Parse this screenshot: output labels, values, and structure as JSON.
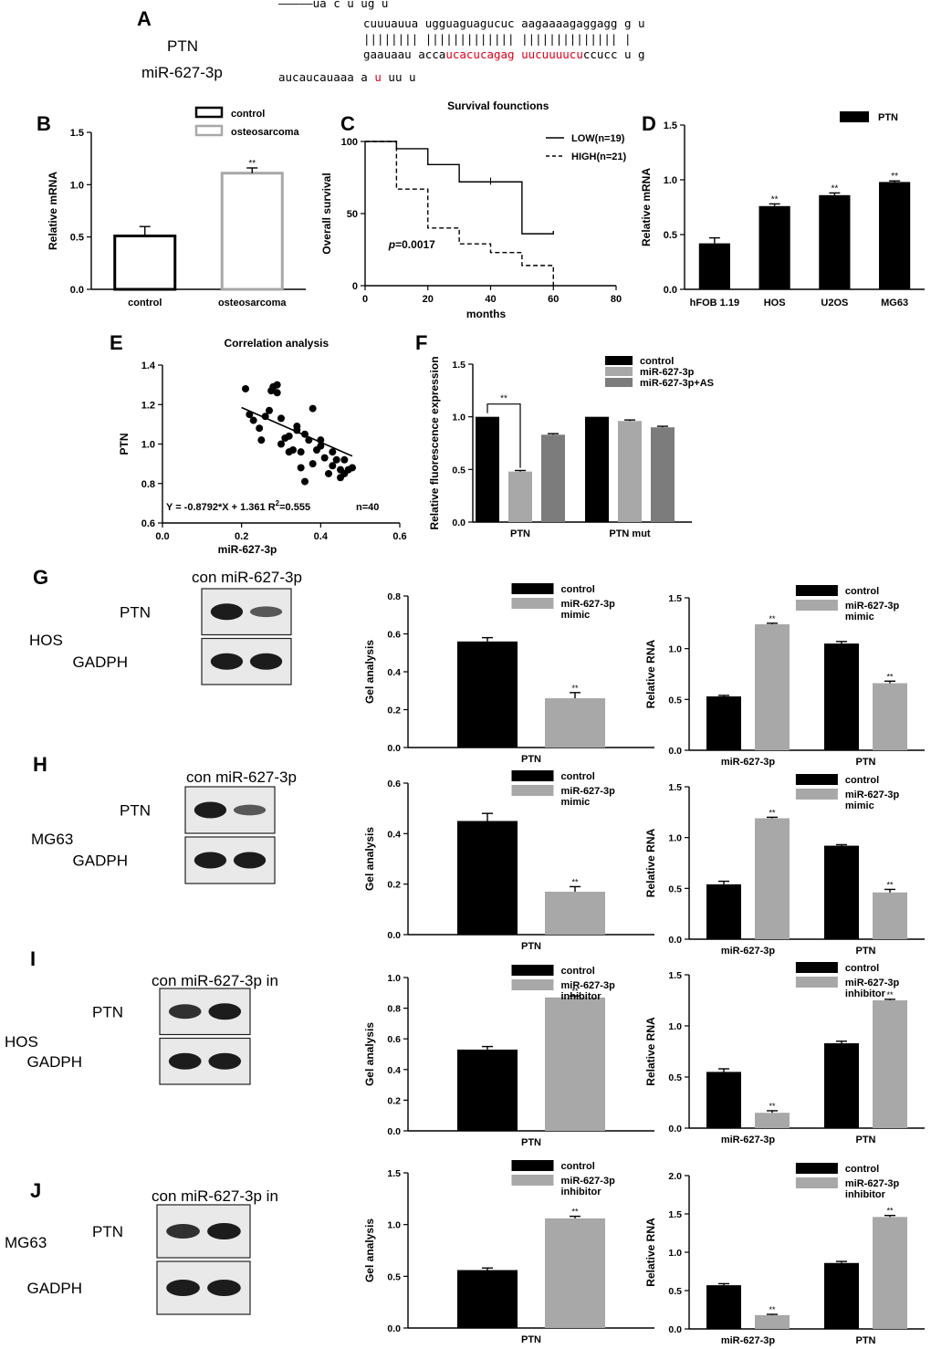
{
  "colors": {
    "black": "#000000",
    "light_gray": "#a8a8a8",
    "mid_gray": "#7c7c7c",
    "dark_gray": "#6a6a6a",
    "red": "#e0001a"
  },
  "panel_a": {
    "letter": "A",
    "gene_label": "PTN",
    "mirna_label": "miR-627-3p",
    "lines": [
      [
        {
          "t": "—————ua        c                u               ug u"
        }
      ],
      [
        {
          "t": "cuuuauua ugguaguagucuc aagaaaagaggagg  g u"
        }
      ],
      [
        {
          "t": "|||||||| ||||||||||||| |||||||||||||| |"
        }
      ],
      [
        {
          "t": "gaauaau acca"
        },
        {
          "t": "ucacucagag",
          "c": "red"
        },
        {
          "t": " "
        },
        {
          "t": "uucuuuucu",
          "c": "red"
        },
        {
          "t": "ccucc  u g"
        }
      ],
      [
        {
          "t": "aucaucauaaa      a                "
        },
        {
          "t": "u",
          "c": "red"
        },
        {
          "t": "               uu u"
        }
      ]
    ]
  },
  "western_blots": [
    {
      "letter": "G",
      "cell": "HOS",
      "header": "con miR-627-3p",
      "bands": [
        "PTN",
        "GADPH"
      ]
    },
    {
      "letter": "H",
      "cell": "MG63",
      "header": "con miR-627-3p",
      "bands": [
        "PTN",
        "GADPH"
      ]
    },
    {
      "letter": "I",
      "cell": "HOS",
      "header": "con miR-627-3p in",
      "bands": [
        "PTN",
        "GADPH"
      ]
    },
    {
      "letter": "J",
      "cell": "MG63",
      "header": "con miR-627-3p in",
      "bands": [
        "PTN",
        "GADPH"
      ]
    }
  ],
  "chart_data": [
    {
      "id": "B",
      "type": "bar",
      "letter": "B",
      "title": "",
      "ylabel": "Relative mRNA",
      "ylim": [
        0,
        1.5
      ],
      "yticks": [
        "0.0",
        "0.5",
        "1.0",
        "1.5"
      ],
      "categories": [
        "control",
        "osteosarcoma"
      ],
      "values": [
        0.51,
        1.11
      ],
      "errors": [
        0.09,
        0.05
      ],
      "sig": [
        "",
        "**"
      ],
      "style": "open",
      "colors": [
        "#000000",
        "#a8a8a8"
      ],
      "legend": [
        "control",
        "osteosarcoma"
      ],
      "legend_position": "top-right"
    },
    {
      "id": "C",
      "type": "line",
      "letter": "C",
      "title": "Survival founctions",
      "xlabel": "months",
      "ylabel": "Overall survival",
      "xlim": [
        0,
        80
      ],
      "ylim": [
        0,
        100
      ],
      "xticks": [
        "0",
        "20",
        "40",
        "60",
        "80"
      ],
      "yticks": [
        "0",
        "50",
        "100"
      ],
      "series": [
        {
          "name": "LOW(n=19)",
          "dash": false,
          "x": [
            0,
            10,
            10,
            20,
            20,
            30,
            30,
            40,
            40,
            50,
            50,
            60,
            60
          ],
          "y": [
            100,
            100,
            95,
            95,
            84,
            84,
            72,
            72,
            72,
            72,
            36,
            36,
            38
          ]
        },
        {
          "name": "HIGH(n=21)",
          "dash": true,
          "x": [
            0,
            10,
            10,
            20,
            20,
            30,
            30,
            40,
            40,
            50,
            50,
            60,
            60
          ],
          "y": [
            100,
            100,
            67,
            67,
            40,
            40,
            29,
            29,
            23,
            23,
            14,
            14,
            0
          ]
        }
      ],
      "annotation": "p=0.0017",
      "legend_position": "top-right"
    },
    {
      "id": "D",
      "type": "bar",
      "letter": "D",
      "title": "",
      "ylabel": "Relative mRNA",
      "ylim": [
        0,
        1.5
      ],
      "yticks": [
        "0.0",
        "0.5",
        "1.0",
        "1.5"
      ],
      "categories": [
        "hFOB 1.19",
        "HOS",
        "U2OS",
        "MG63"
      ],
      "values": [
        0.42,
        0.76,
        0.86,
        0.98
      ],
      "errors": [
        0.05,
        0.02,
        0.02,
        0.01
      ],
      "sig": [
        "",
        "**",
        "**",
        "**"
      ],
      "colors": [
        "#000000"
      ],
      "legend": [
        "PTN"
      ],
      "legend_position": "top-right"
    },
    {
      "id": "E",
      "type": "scatter",
      "letter": "E",
      "title": "Correlation analysis",
      "xlabel": "miR-627-3p",
      "ylabel": "PTN",
      "xlim": [
        0,
        0.6
      ],
      "ylim": [
        0.6,
        1.4
      ],
      "xticks": [
        "0.0",
        "0.2",
        "0.4",
        "0.6"
      ],
      "yticks": [
        "0.6",
        "0.8",
        "1.0",
        "1.2",
        "1.4"
      ],
      "x": [
        0.21,
        0.22,
        0.23,
        0.245,
        0.25,
        0.27,
        0.275,
        0.28,
        0.29,
        0.3,
        0.31,
        0.3,
        0.32,
        0.33,
        0.34,
        0.34,
        0.35,
        0.36,
        0.35,
        0.37,
        0.38,
        0.38,
        0.39,
        0.4,
        0.4,
        0.41,
        0.42,
        0.43,
        0.43,
        0.44,
        0.45,
        0.45,
        0.46,
        0.46,
        0.47,
        0.48,
        0.36,
        0.32,
        0.29,
        0.26
      ],
      "y": [
        1.28,
        1.15,
        1.12,
        1.08,
        1.02,
        1.17,
        1.27,
        1.29,
        1.3,
        1.13,
        1.03,
        1.0,
        0.96,
        0.97,
        1.07,
        1.09,
        0.88,
        0.81,
        0.96,
        1.02,
        0.9,
        1.18,
        0.97,
        0.99,
        1.02,
        0.93,
        0.85,
        0.96,
        0.89,
        0.92,
        0.87,
        0.83,
        0.85,
        0.92,
        0.87,
        0.88,
        1.05,
        1.04,
        1.26,
        1.14
      ],
      "fit_slope": -0.8792,
      "fit_intercept": 1.361,
      "fit_x": [
        0.2,
        0.48
      ],
      "equation": "Y = -0.8792*X + 1.361 R",
      "r2": "2",
      "r2_value": "=0.555",
      "n_label": "n=40"
    },
    {
      "id": "F",
      "type": "bar",
      "letter": "F",
      "title": "",
      "ylabel": "Relative fluorescence expression",
      "ylim": [
        0,
        1.5
      ],
      "yticks": [
        "0.0",
        "0.5",
        "1.0",
        "1.5"
      ],
      "categories": [
        "PTN",
        "PTN mut"
      ],
      "series": [
        {
          "name": "control",
          "values": [
            1.0,
            1.0
          ],
          "errors": [
            0,
            0
          ],
          "color": "#000000"
        },
        {
          "name": "miR-627-3p",
          "values": [
            0.48,
            0.96
          ],
          "errors": [
            0.01,
            0.01
          ],
          "color": "#a8a8a8"
        },
        {
          "name": "miR-627-3p+AS",
          "values": [
            0.83,
            0.9
          ],
          "errors": [
            0.01,
            0.01
          ],
          "color": "#7c7c7c"
        }
      ],
      "bracket": "**",
      "legend_position": "top-right"
    },
    {
      "id": "G-gel",
      "type": "bar",
      "ylabel": "Gel analysis",
      "ylim": [
        0,
        0.8
      ],
      "yticks": [
        "0.0",
        "0.2",
        "0.4",
        "0.6",
        "0.8"
      ],
      "categories": [
        "PTN"
      ],
      "series": [
        {
          "name": "control",
          "values": [
            0.56
          ],
          "errors": [
            0.02
          ]
        },
        {
          "name": "miR-627-3p mimic",
          "values": [
            0.26
          ],
          "errors": [
            0.03
          ],
          "sig": "**"
        }
      ],
      "legend": [
        "control",
        "miR-627-3p",
        "mimic"
      ]
    },
    {
      "id": "G-rna",
      "type": "bar",
      "ylabel": "Relative RNA",
      "ylim": [
        0,
        1.5
      ],
      "yticks": [
        "0.0",
        "0.5",
        "1.0",
        "1.5"
      ],
      "categories": [
        "miR-627-3p",
        "PTN"
      ],
      "series": [
        {
          "name": "control",
          "values": [
            0.53,
            1.05
          ],
          "errors": [
            0.01,
            0.02
          ]
        },
        {
          "name": "miR-627-3p mimic",
          "values": [
            1.24,
            0.66
          ],
          "errors": [
            0.01,
            0.02
          ],
          "sig": [
            "**",
            "**"
          ]
        }
      ],
      "legend": [
        "control",
        "miR-627-3p",
        "mimic"
      ]
    },
    {
      "id": "H-gel",
      "type": "bar",
      "ylabel": "Gel analysis",
      "ylim": [
        0,
        0.6
      ],
      "yticks": [
        "0.0",
        "0.2",
        "0.4",
        "0.6"
      ],
      "categories": [
        "PTN"
      ],
      "series": [
        {
          "name": "control",
          "values": [
            0.45
          ],
          "errors": [
            0.03
          ]
        },
        {
          "name": "miR-627-3p mimic",
          "values": [
            0.17
          ],
          "errors": [
            0.02
          ],
          "sig": "**"
        }
      ],
      "legend": [
        "control",
        "miR-627-3p",
        "mimic"
      ]
    },
    {
      "id": "H-rna",
      "type": "bar",
      "ylabel": "Relative RNA",
      "ylim": [
        0,
        1.5
      ],
      "yticks": [
        "0.0",
        "0.5",
        "1.0",
        "1.5"
      ],
      "categories": [
        "miR-627-3p",
        "PTN"
      ],
      "series": [
        {
          "name": "control",
          "values": [
            0.54,
            0.92
          ],
          "errors": [
            0.03,
            0.01
          ]
        },
        {
          "name": "miR-627-3p mimic",
          "values": [
            1.19,
            0.46
          ],
          "errors": [
            0.01,
            0.03
          ],
          "sig": [
            "**",
            "**"
          ]
        }
      ],
      "legend": [
        "control",
        "miR-627-3p",
        "mimic"
      ]
    },
    {
      "id": "I-gel",
      "type": "bar",
      "ylabel": "Gel analysis",
      "ylim": [
        0,
        1.0
      ],
      "yticks": [
        "0.0",
        "0.2",
        "0.4",
        "0.6",
        "0.8",
        "1.0"
      ],
      "categories": [
        "PTN"
      ],
      "series": [
        {
          "name": "control",
          "values": [
            0.53
          ],
          "errors": [
            0.02
          ]
        },
        {
          "name": "miR-627-3p inhibitor",
          "values": [
            0.87
          ],
          "errors": [
            0.01
          ],
          "sig": "**"
        }
      ],
      "legend": [
        "control",
        "miR-627-3p",
        "inhibitor"
      ]
    },
    {
      "id": "I-rna",
      "type": "bar",
      "ylabel": "Relative RNA",
      "ylim": [
        0,
        1.5
      ],
      "yticks": [
        "0.0",
        "0.5",
        "1.0",
        "1.5"
      ],
      "categories": [
        "miR-627-3p",
        "PTN"
      ],
      "series": [
        {
          "name": "control",
          "values": [
            0.55,
            0.83
          ],
          "errors": [
            0.03,
            0.02
          ]
        },
        {
          "name": "miR-627-3p inhibitor",
          "values": [
            0.15,
            1.25
          ],
          "errors": [
            0.02,
            0.01
          ],
          "sig": [
            "**",
            "**"
          ]
        }
      ],
      "legend": [
        "control",
        "miR-627-3p",
        "inhibitor"
      ]
    },
    {
      "id": "J-gel",
      "type": "bar",
      "ylabel": "Gel analysis",
      "ylim": [
        0,
        1.5
      ],
      "yticks": [
        "0.0",
        "0.5",
        "1.0",
        "1.5"
      ],
      "categories": [
        "PTN"
      ],
      "series": [
        {
          "name": "control",
          "values": [
            0.56
          ],
          "errors": [
            0.02
          ]
        },
        {
          "name": "miR-627-3p inhibitor",
          "values": [
            1.06
          ],
          "errors": [
            0.02
          ],
          "sig": "**"
        }
      ],
      "legend": [
        "control",
        "miR-627-3p",
        "inhibitor"
      ]
    },
    {
      "id": "J-rna",
      "type": "bar",
      "ylabel": "Relative RNA",
      "ylim": [
        0,
        2.0
      ],
      "yticks": [
        "0.0",
        "0.5",
        "1.0",
        "1.5",
        "2.0"
      ],
      "categories": [
        "miR-627-3p",
        "PTN"
      ],
      "series": [
        {
          "name": "control",
          "values": [
            0.57,
            0.86
          ],
          "errors": [
            0.02,
            0.02
          ]
        },
        {
          "name": "miR-627-3p inhibitor",
          "values": [
            0.18,
            1.46
          ],
          "errors": [
            0.01,
            0.02
          ],
          "sig": [
            "**",
            "**"
          ]
        }
      ],
      "legend": [
        "control",
        "miR-627-3p",
        "inhibitor"
      ]
    }
  ]
}
